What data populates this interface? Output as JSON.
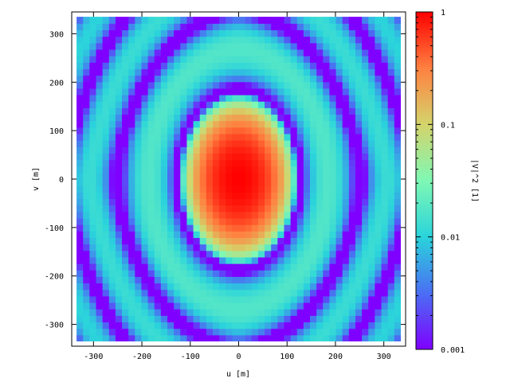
{
  "chart_data": {
    "type": "heatmap",
    "title": "",
    "xlabel": "u [m]",
    "ylabel": "v [m]",
    "colorbar_label": "|V|^2 [1]",
    "xlim": [
      -345,
      345
    ],
    "ylim": [
      -345,
      345
    ],
    "xticks": [
      -300,
      -200,
      -100,
      0,
      100,
      200,
      300
    ],
    "xtick_labels": [
      "-300",
      "-200",
      "-100",
      "0",
      "100",
      "200",
      "300"
    ],
    "yticks": [
      -300,
      -200,
      -100,
      0,
      100,
      200,
      300
    ],
    "ytick_labels": [
      "-300",
      "-200",
      "-100",
      "0",
      "100",
      "200",
      "300"
    ],
    "data_extent": {
      "u": [
        -335,
        335
      ],
      "v": [
        -335,
        335
      ]
    },
    "colorbar": {
      "scale": "log",
      "range": [
        0.001,
        1
      ],
      "ticks": [
        0.001,
        0.01,
        0.1,
        1
      ],
      "tick_labels": [
        "0.001",
        "0.01",
        "0.1",
        "1"
      ],
      "colormap": [
        "#7f00ff",
        "#4a6ff3",
        "#2ad4db",
        "#7ff8b4",
        "#d4d46b",
        "#ff8040",
        "#ff0000"
      ]
    },
    "features": [
      {
        "name": "main lobe peak",
        "u": 0,
        "v": 0,
        "value": 1
      },
      {
        "name": "first null ring",
        "u_radius": 125,
        "v_radius": 180,
        "value": 0.001
      },
      {
        "name": "first sidelobe ring",
        "u_radius": 230,
        "v_radius": 265,
        "value": 0.02
      },
      {
        "name": "second null ring",
        "u_radius": 290,
        "v_radius": 320,
        "value": 0.001
      },
      {
        "name": "corner lobes",
        "u": 330,
        "v": 330,
        "value": 0.005
      }
    ],
    "grid": false,
    "legend": "none"
  }
}
